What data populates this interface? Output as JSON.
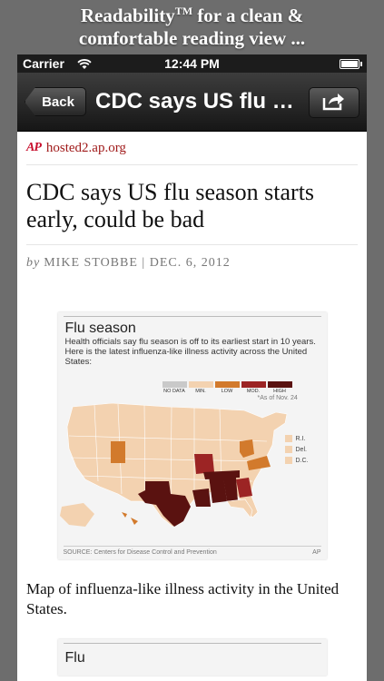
{
  "promo": {
    "line1_a": "Readability",
    "tm": "TM",
    "line1_b": " for a clean &",
    "line2": "comfortable reading view ..."
  },
  "status_bar": {
    "carrier": "Carrier",
    "time": "12:44 PM"
  },
  "nav": {
    "back_label": "Back",
    "title": "CDC says US flu season starts early, could be bad"
  },
  "article": {
    "source_logo": "AP",
    "source_url": "hosted2.ap.org",
    "headline": "CDC says US flu season starts early, could be bad",
    "by": "by",
    "byline": "MIKE STOBBE | DEC. 6, 2012",
    "figure": {
      "title": "Flu season",
      "description": "Health officials say flu season is off to its earliest start in 10 years. Here is the latest influenza-like illness activity across the United States:",
      "legend": [
        {
          "label": "NO DATA",
          "color": "#c9c9c9"
        },
        {
          "label": "MIN.",
          "color": "#f3d2b0"
        },
        {
          "label": "LOW",
          "color": "#d27a2c"
        },
        {
          "label": "MOD.",
          "color": "#9c2424"
        },
        {
          "label": "HIGH",
          "color": "#5a1210"
        }
      ],
      "as_of": "*As of Nov. 24",
      "small_states": [
        {
          "label": "R.I.",
          "color": "#f3d2b0"
        },
        {
          "label": "Del.",
          "color": "#f3d2b0"
        },
        {
          "label": "D.C.",
          "color": "#f3d2b0"
        }
      ],
      "source": "SOURCE: Centers for Disease Control and Prevention",
      "credit": "AP"
    },
    "caption": "Map of influenza-like illness activity in the United States.",
    "next_figure_title": "Flu"
  },
  "colors": {
    "accent": "#a01a1a",
    "nav_bg": "#161616"
  }
}
